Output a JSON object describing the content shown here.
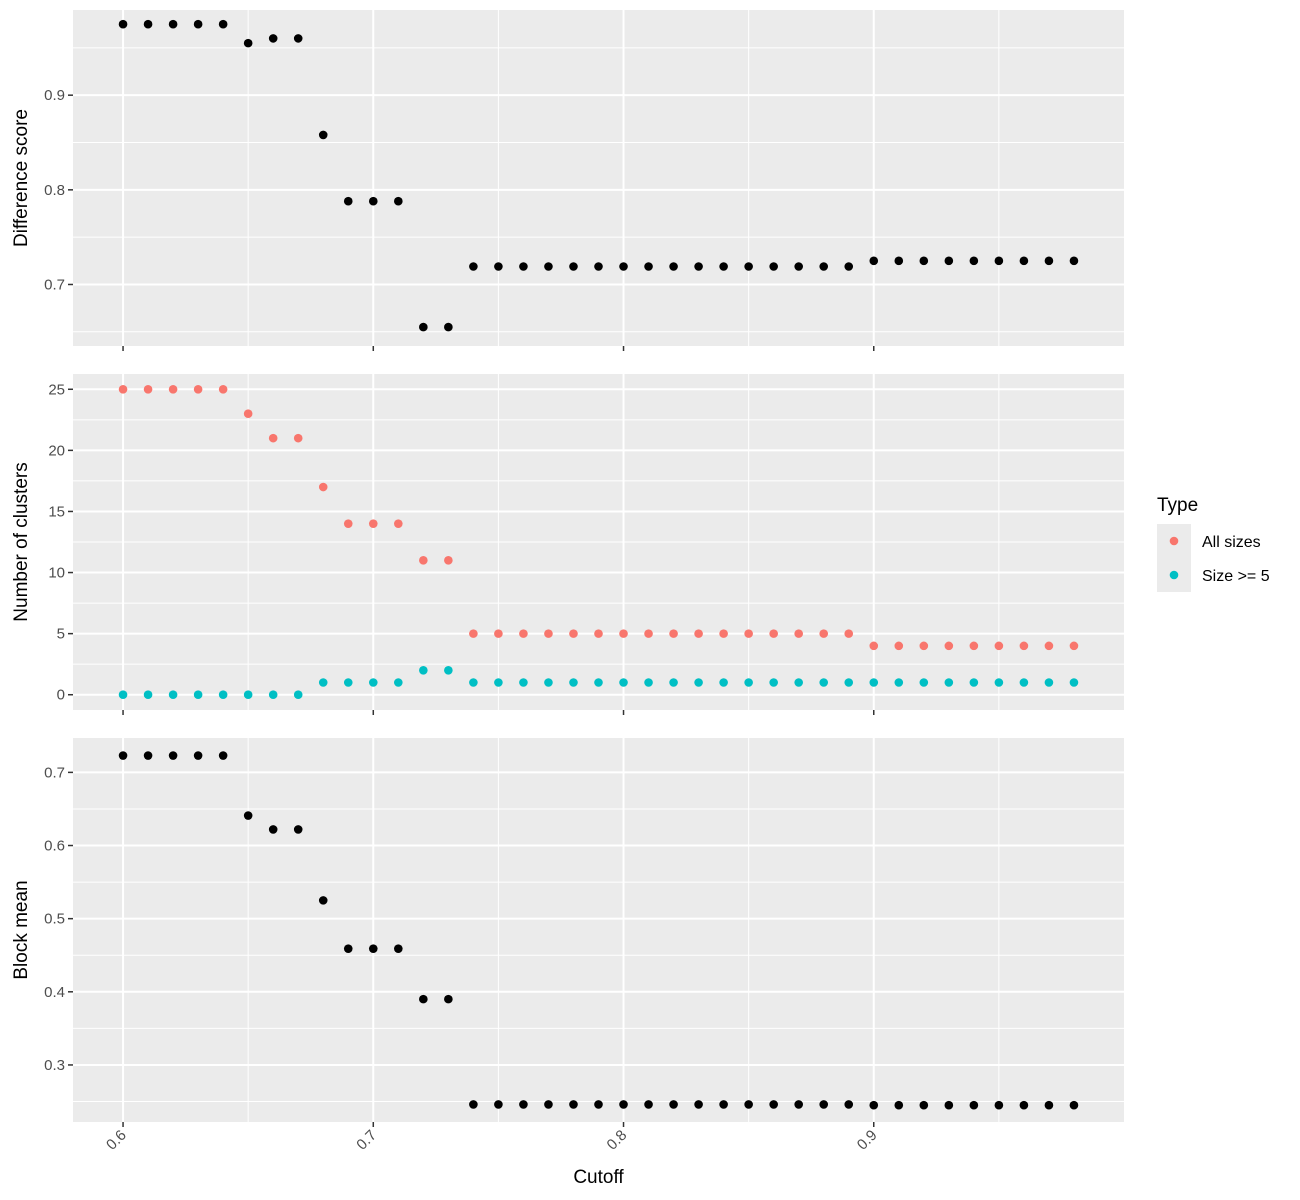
{
  "chart_data": [
    {
      "type": "scatter",
      "panel": "top",
      "ylabel": "Difference score",
      "xlim": [
        0.58,
        1.0
      ],
      "ylim": [
        0.635,
        0.99
      ],
      "yticks": [
        0.7,
        0.8,
        0.9
      ],
      "ytick_labels": [
        "0.7",
        "0.8",
        "0.9"
      ],
      "color": "#000000",
      "x": [
        0.6,
        0.61,
        0.62,
        0.63,
        0.64,
        0.65,
        0.66,
        0.67,
        0.68,
        0.69,
        0.7,
        0.71,
        0.72,
        0.73,
        0.74,
        0.75,
        0.76,
        0.77,
        0.78,
        0.79,
        0.8,
        0.81,
        0.82,
        0.83,
        0.84,
        0.85,
        0.86,
        0.87,
        0.88,
        0.89,
        0.9,
        0.91,
        0.92,
        0.93,
        0.94,
        0.95,
        0.96,
        0.97,
        0.98
      ],
      "y": [
        0.975,
        0.975,
        0.975,
        0.975,
        0.975,
        0.955,
        0.96,
        0.96,
        0.858,
        0.788,
        0.788,
        0.788,
        0.655,
        0.655,
        0.719,
        0.719,
        0.719,
        0.719,
        0.719,
        0.719,
        0.719,
        0.719,
        0.719,
        0.719,
        0.719,
        0.719,
        0.719,
        0.719,
        0.719,
        0.719,
        0.725,
        0.725,
        0.725,
        0.725,
        0.725,
        0.725,
        0.725,
        0.725,
        0.725
      ]
    },
    {
      "type": "scatter",
      "panel": "middle",
      "ylabel": "Number of clusters",
      "xlim": [
        0.58,
        1.0
      ],
      "ylim": [
        -1.25,
        26.25
      ],
      "yticks": [
        0,
        5,
        10,
        15,
        20,
        25
      ],
      "ytick_labels": [
        "0",
        "5",
        "10",
        "15",
        "20",
        "25"
      ],
      "legend": {
        "title": "Type",
        "placement": "right"
      },
      "series": [
        {
          "name": "All sizes",
          "color": "#F8766D",
          "x": [
            0.6,
            0.61,
            0.62,
            0.63,
            0.64,
            0.65,
            0.66,
            0.67,
            0.68,
            0.69,
            0.7,
            0.71,
            0.72,
            0.73,
            0.74,
            0.75,
            0.76,
            0.77,
            0.78,
            0.79,
            0.8,
            0.81,
            0.82,
            0.83,
            0.84,
            0.85,
            0.86,
            0.87,
            0.88,
            0.89,
            0.9,
            0.91,
            0.92,
            0.93,
            0.94,
            0.95,
            0.96,
            0.97,
            0.98
          ],
          "y": [
            25,
            25,
            25,
            25,
            25,
            23,
            21,
            21,
            17,
            14,
            14,
            14,
            11,
            11,
            5,
            5,
            5,
            5,
            5,
            5,
            5,
            5,
            5,
            5,
            5,
            5,
            5,
            5,
            5,
            5,
            4,
            4,
            4,
            4,
            4,
            4,
            4,
            4,
            4
          ]
        },
        {
          "name": "Size >= 5",
          "color": "#00BFC4",
          "x": [
            0.6,
            0.61,
            0.62,
            0.63,
            0.64,
            0.65,
            0.66,
            0.67,
            0.68,
            0.69,
            0.7,
            0.71,
            0.72,
            0.73,
            0.74,
            0.75,
            0.76,
            0.77,
            0.78,
            0.79,
            0.8,
            0.81,
            0.82,
            0.83,
            0.84,
            0.85,
            0.86,
            0.87,
            0.88,
            0.89,
            0.9,
            0.91,
            0.92,
            0.93,
            0.94,
            0.95,
            0.96,
            0.97,
            0.98
          ],
          "y": [
            0,
            0,
            0,
            0,
            0,
            0,
            0,
            0,
            1,
            1,
            1,
            1,
            2,
            2,
            1,
            1,
            1,
            1,
            1,
            1,
            1,
            1,
            1,
            1,
            1,
            1,
            1,
            1,
            1,
            1,
            1,
            1,
            1,
            1,
            1,
            1,
            1,
            1,
            1
          ]
        }
      ]
    },
    {
      "type": "scatter",
      "panel": "bottom",
      "ylabel": "Block mean",
      "xlabel": "Cutoff",
      "xlim": [
        0.58,
        1.0
      ],
      "ylim": [
        0.222,
        0.747
      ],
      "yticks": [
        0.3,
        0.4,
        0.5,
        0.6,
        0.7
      ],
      "ytick_labels": [
        "0.3",
        "0.4",
        "0.5",
        "0.6",
        "0.7"
      ],
      "xticks": [
        0.6,
        0.7,
        0.8,
        0.9
      ],
      "xtick_labels": [
        "0.6",
        "0.7",
        "0.8",
        "0.9"
      ],
      "color": "#000000",
      "x": [
        0.6,
        0.61,
        0.62,
        0.63,
        0.64,
        0.65,
        0.66,
        0.67,
        0.68,
        0.69,
        0.7,
        0.71,
        0.72,
        0.73,
        0.74,
        0.75,
        0.76,
        0.77,
        0.78,
        0.79,
        0.8,
        0.81,
        0.82,
        0.83,
        0.84,
        0.85,
        0.86,
        0.87,
        0.88,
        0.89,
        0.9,
        0.91,
        0.92,
        0.93,
        0.94,
        0.95,
        0.96,
        0.97,
        0.98
      ],
      "y": [
        0.723,
        0.723,
        0.723,
        0.723,
        0.723,
        0.641,
        0.622,
        0.622,
        0.525,
        0.459,
        0.459,
        0.459,
        0.39,
        0.39,
        0.246,
        0.246,
        0.246,
        0.246,
        0.246,
        0.246,
        0.246,
        0.246,
        0.246,
        0.246,
        0.246,
        0.246,
        0.246,
        0.246,
        0.246,
        0.246,
        0.245,
        0.245,
        0.245,
        0.245,
        0.245,
        0.245,
        0.245,
        0.245,
        0.245
      ]
    }
  ]
}
